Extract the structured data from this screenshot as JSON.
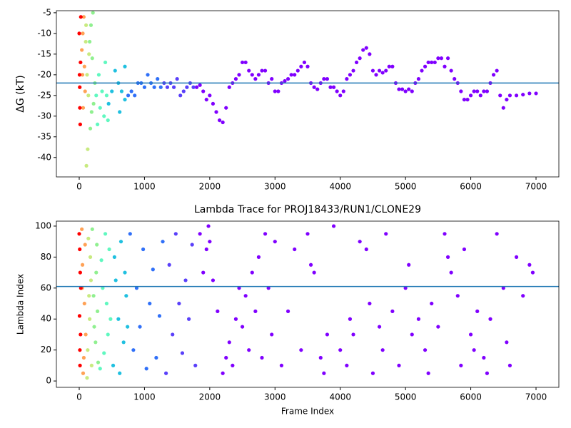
{
  "chart_data": [
    {
      "type": "scatter",
      "ylabel": "ΔG (kT)",
      "xlim": [
        -350,
        7350
      ],
      "ylim": [
        -44.7,
        -4.5
      ],
      "xticks": [
        0,
        1000,
        2000,
        3000,
        4000,
        5000,
        6000,
        7000
      ],
      "yticks": [
        -40,
        -35,
        -30,
        -25,
        -20,
        -15,
        -10,
        -5
      ],
      "hline": -22,
      "hline_color": "#1f77b4",
      "series": [
        {
          "color": "#8000ff",
          "x": [
            1800,
            1850,
            1900,
            1950,
            2000,
            2050,
            2100,
            2150,
            2200,
            2250,
            2300,
            2350,
            2400,
            2450,
            2500,
            2550,
            2600,
            2650,
            2700,
            2750,
            2800,
            2850,
            2900,
            2950,
            3000,
            3050,
            3100,
            3150,
            3200,
            3250,
            3300,
            3350,
            3400,
            3450,
            3500,
            3550,
            3600,
            3650,
            3700,
            3750,
            3800,
            3850,
            3900,
            3950,
            4000,
            4050,
            4100,
            4150,
            4200,
            4250,
            4300,
            4350,
            4400,
            4450,
            4500,
            4550,
            4600,
            4650,
            4700,
            4750,
            4800,
            4850,
            4900,
            4950,
            5000,
            5050,
            5100,
            5150,
            5200,
            5250,
            5300,
            5350,
            5400,
            5450,
            5500,
            5550,
            5600,
            5650,
            5700,
            5750,
            5800,
            5850,
            5900,
            5950,
            6000,
            6050,
            6100,
            6150,
            6200,
            6250,
            6300,
            6350,
            6400,
            6450,
            6500,
            6550,
            6600,
            6700,
            6800,
            6900,
            7000
          ],
          "values": [
            -23,
            -22.5,
            -24,
            -26,
            -25,
            -27,
            -29,
            -31,
            -31.5,
            -28,
            -23,
            -22,
            -21,
            -20,
            -17,
            -17,
            -19,
            -20,
            -21,
            -20,
            -19,
            -19,
            -22,
            -21,
            -24,
            -24,
            -22,
            -21.5,
            -21,
            -20,
            -20,
            -19,
            -18,
            -17,
            -18,
            -22,
            -23,
            -23.5,
            -22,
            -21,
            -21,
            -23,
            -23,
            -24,
            -25,
            -24,
            -21,
            -20,
            -19,
            -17,
            -16,
            -14,
            -13.5,
            -15,
            -19,
            -20,
            -19,
            -19.5,
            -19,
            -18,
            -18,
            -22,
            -23.5,
            -23.5,
            -24,
            -23.5,
            -24,
            -22,
            -21,
            -19,
            -18,
            -17,
            -17,
            -17,
            -16,
            -16,
            -18,
            -16,
            -19,
            -21,
            -22,
            -24,
            -26,
            -26,
            -25,
            -24,
            -24,
            -25,
            -24,
            -24,
            -22,
            -20,
            -19,
            -25,
            -28,
            -26,
            -25,
            -25,
            -24.8,
            -24.5,
            -24.5
          ]
        },
        {
          "color": "#5a40fa",
          "x": [
            1300,
            1350,
            1400,
            1450,
            1500,
            1550,
            1600,
            1650,
            1700,
            1750
          ],
          "values": [
            -22,
            -23,
            -22,
            -23,
            -21,
            -25,
            -24,
            -23,
            -22,
            -23
          ]
        },
        {
          "color": "#3070f8",
          "x": [
            750,
            800,
            850,
            900,
            950,
            1000,
            1050,
            1100,
            1150,
            1200,
            1250
          ],
          "values": [
            -25,
            -24,
            -25,
            -22,
            -22,
            -23,
            -20,
            -22,
            -23,
            -21,
            -23
          ]
        },
        {
          "color": "#20c0e0",
          "x": [
            450,
            500,
            550,
            600,
            650,
            700,
            700,
            620
          ],
          "values": [
            -27,
            -24,
            -19,
            -22,
            -24,
            -18,
            -26,
            -29
          ]
        },
        {
          "color": "#60f8c0",
          "x": [
            260,
            280,
            300,
            320,
            350,
            380,
            400,
            420,
            440
          ],
          "values": [
            -25,
            -32,
            -20,
            -28,
            -24,
            -30,
            -17,
            -25,
            -31
          ]
        },
        {
          "color": "#90f090",
          "x": [
            160,
            180,
            200,
            210,
            220,
            240,
            170,
            190
          ],
          "values": [
            -12,
            -8,
            -16,
            -5,
            -27,
            -22,
            -33,
            -29
          ]
        },
        {
          "color": "#c8ea80",
          "x": [
            100,
            110,
            120,
            130,
            140,
            150,
            105
          ],
          "values": [
            -12,
            -42,
            -20,
            -38,
            -25,
            -15,
            -8
          ]
        },
        {
          "color": "#ffa256",
          "x": [
            40,
            50,
            60,
            70,
            80,
            90,
            55
          ],
          "values": [
            -14,
            -20,
            -28,
            -6,
            -18,
            -24,
            -10
          ]
        },
        {
          "color": "#ff0000",
          "x": [
            0,
            5,
            10,
            15,
            20,
            25,
            8
          ],
          "values": [
            -10,
            -20,
            -28,
            -32,
            -17,
            -6,
            -23
          ]
        }
      ]
    },
    {
      "type": "scatter",
      "title": "Lambda Trace for PROJ18433/RUN1/CLONE29",
      "xlabel": "Frame Index",
      "ylabel": "Lambda Index",
      "xlim": [
        -350,
        7350
      ],
      "ylim": [
        -4.1,
        103.2
      ],
      "xticks": [
        0,
        1000,
        2000,
        3000,
        4000,
        5000,
        6000,
        7000
      ],
      "yticks": [
        0,
        20,
        40,
        60,
        80,
        100
      ],
      "hline": 61,
      "hline_color": "#1f77b4",
      "series": [
        {
          "color": "#8000ff",
          "x": [
            1850,
            1900,
            1950,
            2000,
            2050,
            1980,
            2120,
            2200,
            2250,
            2300,
            2350,
            2400,
            2450,
            2500,
            2550,
            2600,
            2650,
            2700,
            2750,
            2800,
            2850,
            2900,
            2950,
            3000,
            3100,
            3200,
            3300,
            3400,
            3500,
            3550,
            3600,
            3700,
            3750,
            3800,
            3900,
            4000,
            4100,
            4150,
            4200,
            4300,
            4400,
            4450,
            4500,
            4600,
            4650,
            4700,
            4800,
            4900,
            5000,
            5050,
            5100,
            5200,
            5300,
            5350,
            5400,
            5500,
            5600,
            5650,
            5700,
            5800,
            5850,
            5900,
            6000,
            6050,
            6100,
            6200,
            6250,
            6300,
            6400,
            6500,
            6550,
            6600,
            6700,
            6800,
            6900,
            6950
          ],
          "values": [
            95,
            70,
            85,
            90,
            65,
            100,
            45,
            5,
            15,
            25,
            10,
            40,
            60,
            35,
            55,
            20,
            70,
            45,
            80,
            15,
            95,
            60,
            30,
            90,
            10,
            45,
            85,
            20,
            95,
            75,
            70,
            15,
            5,
            30,
            100,
            20,
            10,
            40,
            30,
            90,
            85,
            50,
            5,
            35,
            20,
            95,
            45,
            10,
            60,
            75,
            30,
            40,
            20,
            5,
            50,
            35,
            95,
            80,
            70,
            55,
            10,
            85,
            30,
            20,
            45,
            15,
            5,
            40,
            95,
            60,
            25,
            10,
            80,
            55,
            75,
            70
          ]
        },
        {
          "color": "#5a40fa",
          "x": [
            1330,
            1380,
            1430,
            1480,
            1530,
            1580,
            1630,
            1680,
            1730,
            1780
          ],
          "values": [
            5,
            75,
            30,
            95,
            50,
            18,
            65,
            40,
            88,
            10
          ]
        },
        {
          "color": "#3070f8",
          "x": [
            780,
            830,
            880,
            930,
            980,
            1030,
            1080,
            1130,
            1180,
            1230,
            1280
          ],
          "values": [
            95,
            20,
            60,
            35,
            85,
            8,
            50,
            72,
            15,
            42,
            90
          ]
        },
        {
          "color": "#20c0e0",
          "x": [
            520,
            560,
            600,
            640,
            680,
            720,
            540,
            620,
            700,
            740
          ],
          "values": [
            10,
            65,
            40,
            90,
            25,
            55,
            80,
            5,
            70,
            35
          ]
        },
        {
          "color": "#60f8c0",
          "x": [
            320,
            360,
            400,
            440,
            340,
            380,
            420,
            460,
            480
          ],
          "values": [
            8,
            60,
            95,
            30,
            78,
            18,
            50,
            85,
            40
          ]
        },
        {
          "color": "#90f090",
          "x": [
            200,
            230,
            260,
            290,
            220,
            270,
            250,
            280
          ],
          "values": [
            98,
            35,
            70,
            12,
            55,
            88,
            25,
            45
          ]
        },
        {
          "color": "#c8ea80",
          "x": [
            120,
            140,
            160,
            180,
            130,
            170,
            150,
            190
          ],
          "values": [
            2,
            92,
            40,
            65,
            20,
            80,
            55,
            10
          ]
        },
        {
          "color": "#ffa256",
          "x": [
            40,
            60,
            80,
            100,
            50,
            70,
            90,
            45
          ],
          "values": [
            98,
            5,
            50,
            30,
            75,
            15,
            88,
            60
          ]
        },
        {
          "color": "#ff0000",
          "x": [
            0,
            5,
            10,
            15,
            20,
            25,
            8,
            12
          ],
          "values": [
            95,
            42,
            20,
            70,
            30,
            60,
            85,
            10
          ]
        }
      ]
    }
  ]
}
